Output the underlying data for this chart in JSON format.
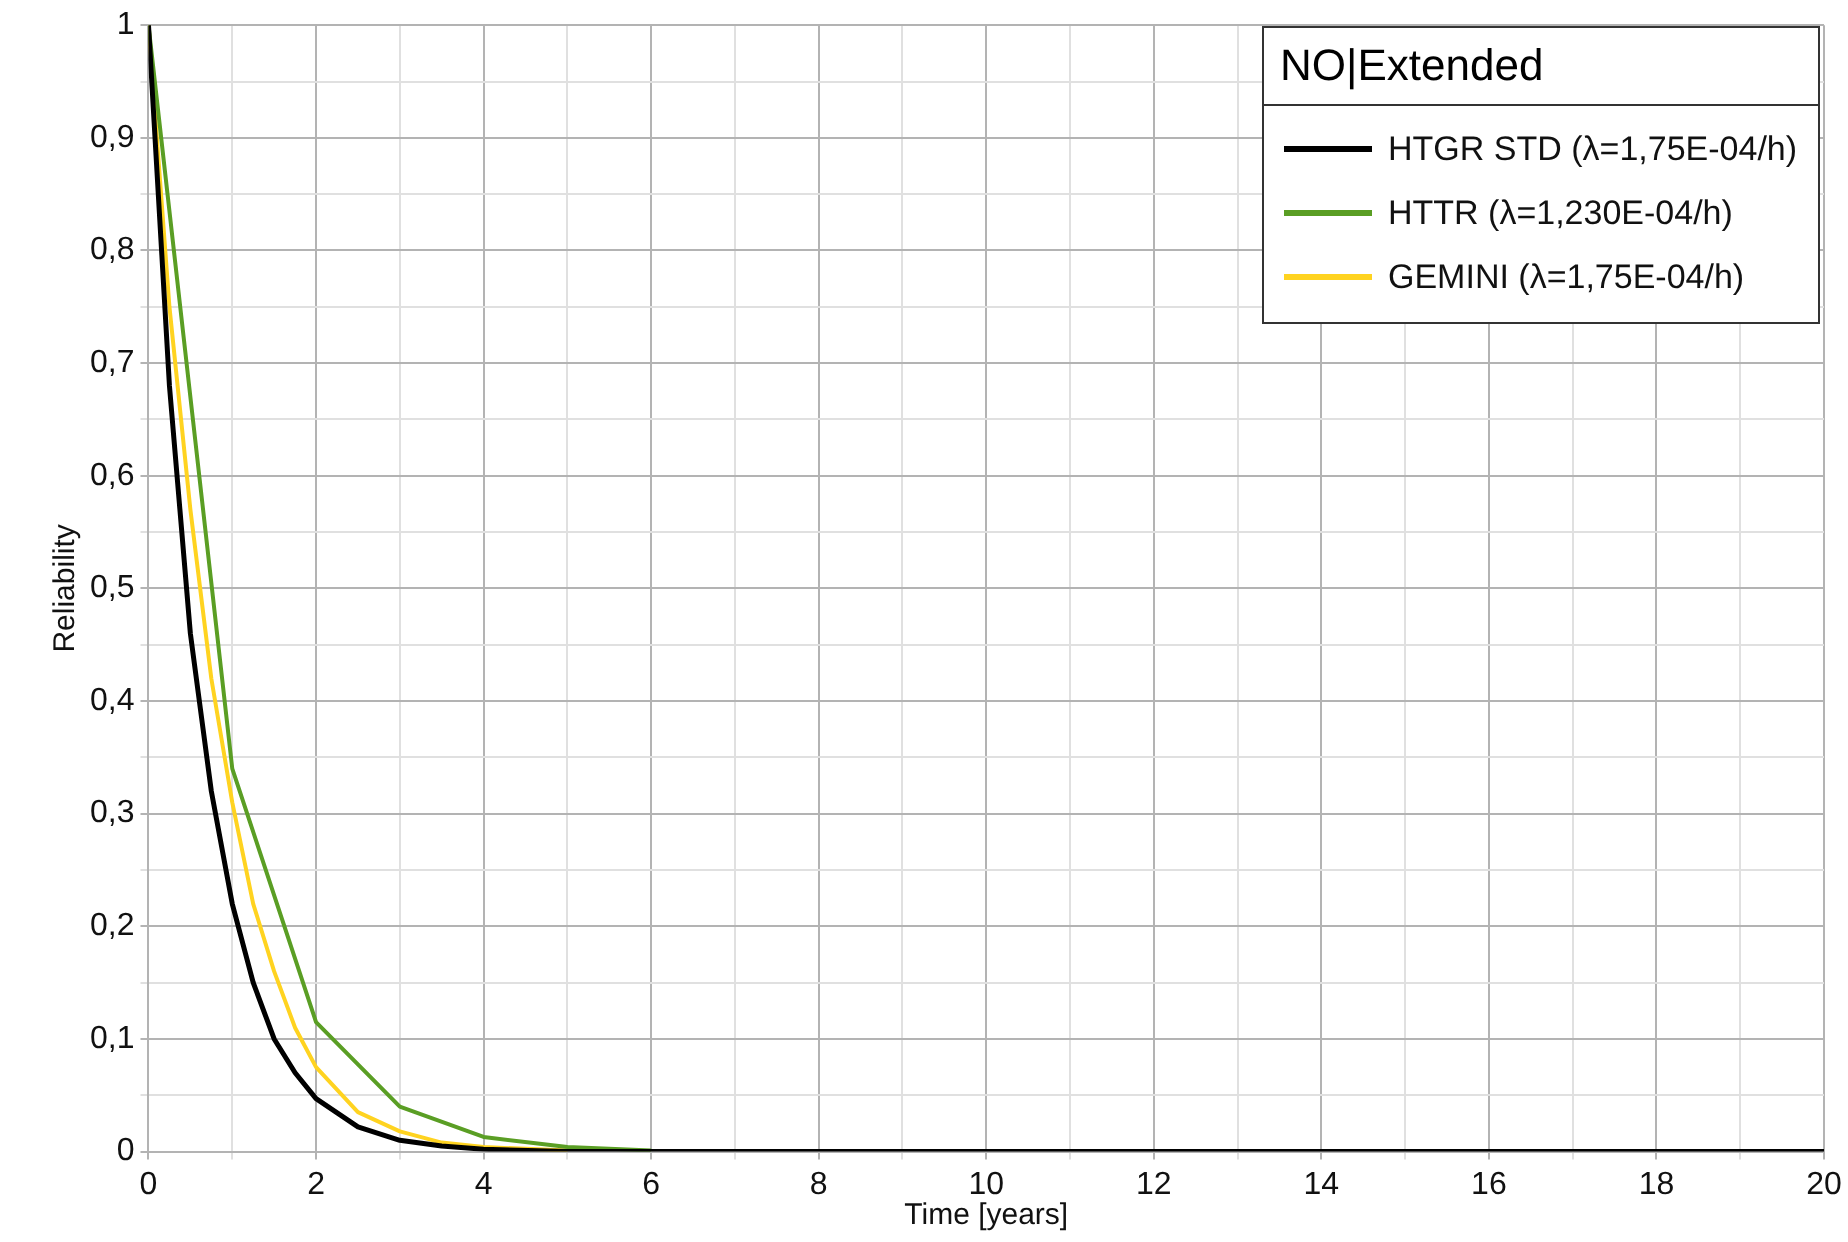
{
  "chart_data": {
    "type": "line",
    "xlabel": "Time [years]",
    "ylabel": "Reliability",
    "legend_title": "NO|Extended",
    "legend": "top right",
    "grid": true,
    "marker": "none",
    "line_style": "solid",
    "xlim": [
      0,
      20
    ],
    "ylim": [
      0,
      1
    ],
    "xticks": [
      0,
      {
        "value": 1,
        "label": null
      },
      2,
      {
        "value": 3,
        "label": null
      },
      4,
      {
        "value": 5,
        "label": null
      },
      6,
      {
        "value": 7,
        "label": null
      },
      8,
      {
        "value": 9,
        "label": null
      },
      10,
      {
        "value": 11,
        "label": null
      },
      12,
      {
        "value": 13,
        "label": null
      },
      14,
      {
        "value": 15,
        "label": null
      },
      16,
      {
        "value": 17,
        "label": null
      },
      18,
      {
        "value": 19,
        "label": null
      },
      20
    ],
    "yticks": [
      0,
      {
        "value": 0.05,
        "label": null
      },
      {
        "value": 0.1,
        "label": "0,1"
      },
      {
        "value": 0.15,
        "label": null
      },
      {
        "value": 0.2,
        "label": "0,2"
      },
      {
        "value": 0.25,
        "label": null
      },
      {
        "value": 0.3,
        "label": "0,3"
      },
      {
        "value": 0.35,
        "label": null
      },
      {
        "value": 0.4,
        "label": "0,4"
      },
      {
        "value": 0.45,
        "label": null
      },
      {
        "value": 0.5,
        "label": "0,5"
      },
      {
        "value": 0.55,
        "label": null
      },
      {
        "value": 0.6,
        "label": "0,6"
      },
      {
        "value": 0.65,
        "label": null
      },
      {
        "value": 0.7,
        "label": "0,7"
      },
      {
        "value": 0.75,
        "label": null
      },
      {
        "value": 0.8,
        "label": "0,8"
      },
      {
        "value": 0.85,
        "label": null
      },
      {
        "value": 0.9,
        "label": "0,9"
      },
      {
        "value": 0.95,
        "label": null
      },
      1
    ],
    "series": [
      {
        "name": "HTGR STD (λ=1,75E-04/h)",
        "color": "#000000",
        "x": [
          0,
          0.25,
          0.5,
          0.75,
          1,
          1.25,
          1.5,
          1.75,
          2,
          2.5,
          3,
          3.5,
          4,
          5,
          6,
          8,
          10,
          12,
          14,
          16,
          18,
          20
        ],
        "values": [
          1,
          0.68,
          0.46,
          0.32,
          0.22,
          0.15,
          0.1,
          0.07,
          0.047,
          0.022,
          0.01,
          0.005,
          0.002,
          0,
          0,
          0,
          0,
          0,
          0,
          0,
          0,
          0
        ]
      },
      {
        "name": "HTTR (λ=1,230E-04/h)",
        "color": "#5a9e24",
        "x": [
          0,
          1,
          2,
          3,
          4,
          5,
          6
        ],
        "values": [
          1,
          0.34,
          0.115,
          0.04,
          0.013,
          0.004,
          0.001
        ]
      },
      {
        "name": "GEMINI (λ=1,75E-04/h)",
        "color": "#ffd320",
        "x": [
          0,
          0.25,
          0.5,
          0.75,
          1,
          1.25,
          1.5,
          1.75,
          2,
          2.5,
          3,
          3.5,
          4,
          5
        ],
        "values": [
          1,
          0.75,
          0.57,
          0.42,
          0.31,
          0.22,
          0.16,
          0.11,
          0.075,
          0.035,
          0.018,
          0.008,
          0.004,
          0.001
        ]
      }
    ]
  }
}
